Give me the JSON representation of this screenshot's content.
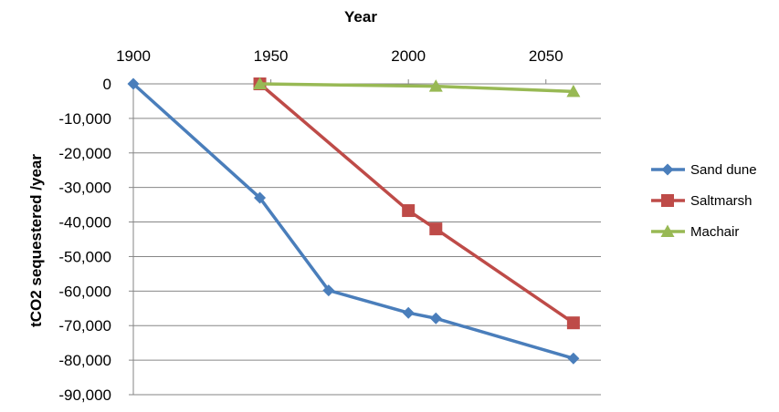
{
  "chart_data": {
    "type": "line",
    "xlabel": "Year",
    "ylabel": "tCO2 sequestered /year",
    "xlim": [
      1900,
      2070
    ],
    "ylim": [
      -90000,
      0
    ],
    "x_ticks": [
      1900,
      1950,
      2000,
      2050
    ],
    "x_tick_labels": [
      "1900",
      "1950",
      "2000",
      "2050"
    ],
    "y_ticks": [
      0,
      -10000,
      -20000,
      -30000,
      -40000,
      -50000,
      -60000,
      -70000,
      -80000,
      -90000
    ],
    "y_tick_labels": [
      "0",
      "-10,000",
      "-20,000",
      "-30,000",
      "-40,000",
      "-50,000",
      "-60,000",
      "-70,000",
      "-80,000",
      "-90,000"
    ],
    "x_axis_position": "top",
    "grid": "horizontal",
    "legend_position": "right",
    "series": [
      {
        "name": "Sand dune",
        "color": "#4a7ebb",
        "marker": "diamond",
        "x": [
          1900,
          1946,
          1971,
          2000,
          2010,
          2060
        ],
        "y": [
          0,
          -33000,
          -59800,
          -66300,
          -67900,
          -79500
        ]
      },
      {
        "name": "Saltmarsh",
        "color": "#be4b48",
        "marker": "square",
        "x": [
          1946,
          2000,
          2010,
          2060
        ],
        "y": [
          0,
          -36700,
          -42000,
          -69200
        ]
      },
      {
        "name": "Machair",
        "color": "#98b954",
        "marker": "triangle",
        "x": [
          1946,
          2010,
          2060
        ],
        "y": [
          0,
          -700,
          -2200
        ]
      }
    ]
  }
}
